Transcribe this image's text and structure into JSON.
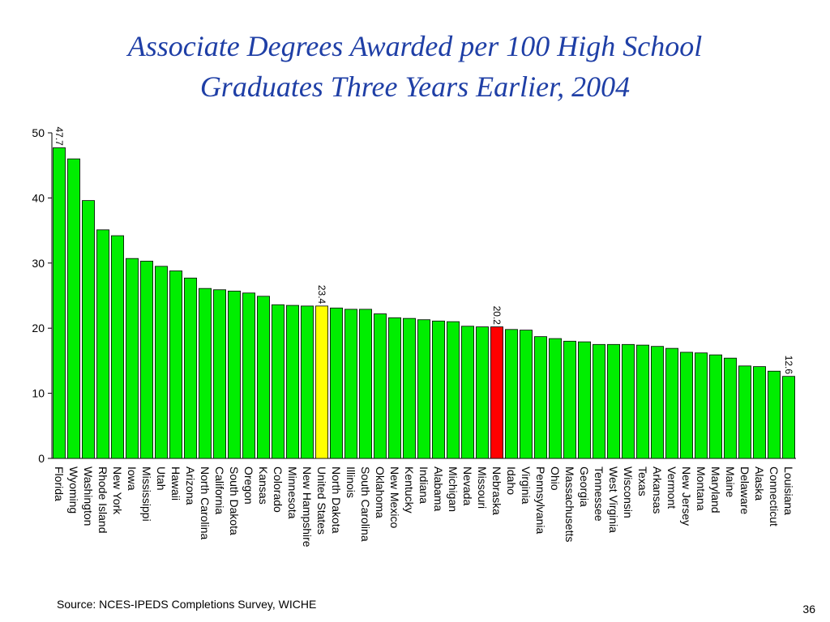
{
  "slide": {
    "title_line1": "Associate Degrees Awarded per 100 High School",
    "title_line2": "Graduates Three Years Earlier, 2004",
    "source": "Source:  NCES-IPEDS Completions Survey, WICHE",
    "page_number": "36"
  },
  "chart_data": {
    "type": "bar",
    "title": "Associate Degrees Awarded per 100 High School Graduates Three Years Earlier, 2004",
    "xlabel": "",
    "ylabel": "",
    "ylim": [
      0,
      50
    ],
    "yticks": [
      0,
      10,
      20,
      30,
      40,
      50
    ],
    "grid": false,
    "legend": "none",
    "colors": {
      "default": "#00ee00",
      "highlight_us": "#ffff00",
      "highlight_state": "#ff0000",
      "outline": "#000000"
    },
    "categories": [
      "Florida",
      "Wyoming",
      "Washington",
      "Rhode Island",
      "New York",
      "Iowa",
      "Mississippi",
      "Utah",
      "Hawaii",
      "Arizona",
      "North Carolina",
      "California",
      "South Dakota",
      "Oregon",
      "Kansas",
      "Colorado",
      "Minnesota",
      "New Hampshire",
      "United States",
      "North Dakota",
      "Illinois",
      "South Carolina",
      "Oklahoma",
      "New Mexico",
      "Kentucky",
      "Indiana",
      "Alabama",
      "Michigan",
      "Nevada",
      "Missouri",
      "Nebraska",
      "Idaho",
      "Virginia",
      "Pennsylvania",
      "Ohio",
      "Massachusetts",
      "Georgia",
      "Tennessee",
      "West Virginia",
      "Wisconsin",
      "Texas",
      "Arkansas",
      "Vermont",
      "New Jersey",
      "Montana",
      "Maryland",
      "Maine",
      "Delaware",
      "Alaska",
      "Connecticut",
      "Louisiana"
    ],
    "values": [
      47.7,
      46.0,
      39.6,
      35.1,
      34.2,
      30.7,
      30.3,
      29.5,
      28.8,
      27.7,
      26.1,
      25.9,
      25.7,
      25.4,
      24.9,
      23.6,
      23.5,
      23.4,
      23.4,
      23.1,
      22.9,
      22.9,
      22.2,
      21.6,
      21.5,
      21.3,
      21.1,
      21.0,
      20.3,
      20.2,
      20.2,
      19.8,
      19.7,
      18.7,
      18.4,
      18.0,
      17.9,
      17.5,
      17.5,
      17.5,
      17.4,
      17.2,
      16.9,
      16.3,
      16.2,
      15.9,
      15.4,
      14.2,
      14.1,
      13.4,
      12.6
    ],
    "highlights": {
      "United States": "highlight_us",
      "Nebraska": "highlight_state"
    },
    "data_labels": [
      {
        "category": "Florida",
        "text": "47.7"
      },
      {
        "category": "United States",
        "text": "23.4"
      },
      {
        "category": "Nebraska",
        "text": "20.2"
      },
      {
        "category": "Louisiana",
        "text": "12.6"
      }
    ]
  }
}
